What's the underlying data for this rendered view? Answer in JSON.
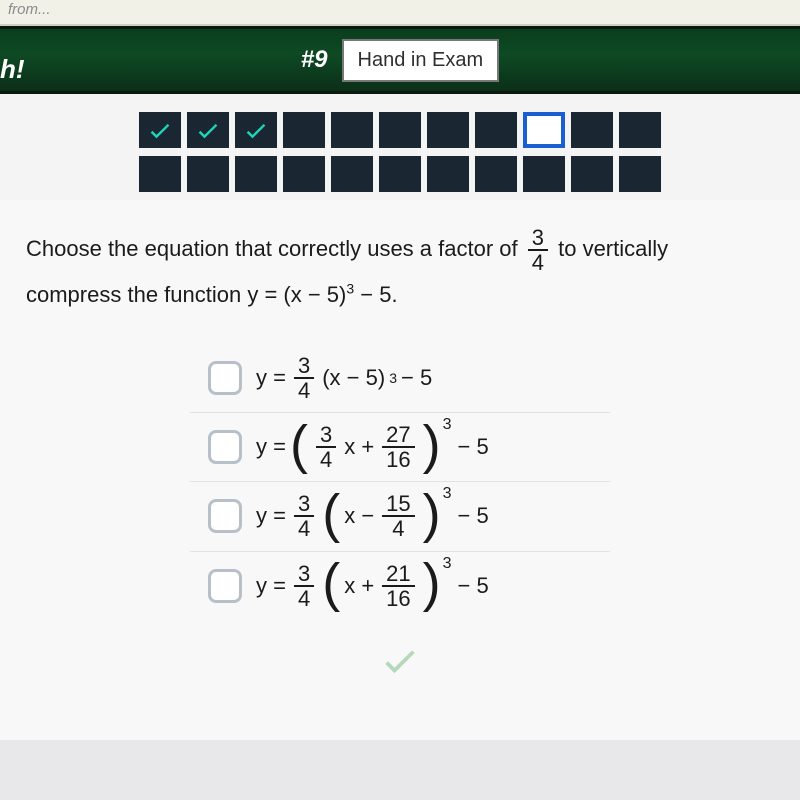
{
  "browser_hint": "from...",
  "header": {
    "badge": "h!",
    "question_num": "#9",
    "hand_in_label": "Hand in Exam"
  },
  "progress": {
    "row1": [
      {
        "state": "check"
      },
      {
        "state": "check"
      },
      {
        "state": "check"
      },
      {
        "state": "blank"
      },
      {
        "state": "blank"
      },
      {
        "state": "blank"
      },
      {
        "state": "blank"
      },
      {
        "state": "blank"
      },
      {
        "state": "current"
      },
      {
        "state": "blank"
      },
      {
        "state": "blank"
      }
    ],
    "row2": [
      {
        "state": "blank"
      },
      {
        "state": "blank"
      },
      {
        "state": "blank"
      },
      {
        "state": "blank"
      },
      {
        "state": "blank"
      },
      {
        "state": "blank"
      },
      {
        "state": "blank"
      },
      {
        "state": "blank"
      },
      {
        "state": "blank"
      },
      {
        "state": "blank"
      },
      {
        "state": "blank"
      }
    ],
    "check_color": "#1fd3b8",
    "cell_color": "#1b2633",
    "current_border": "#1a5fd0"
  },
  "question": {
    "line1_a": "Choose the equation that correctly uses a factor of ",
    "frac_num": "3",
    "frac_den": "4",
    "line1_b": " to vertically",
    "line2_a": "compress the function y = (x − 5)",
    "line2_exp": "3",
    "line2_b": " − 5."
  },
  "choices": {
    "a": {
      "pre": "y = ",
      "f1n": "3",
      "f1d": "4",
      "mid": " (x − 5)",
      "exp": "3",
      "tail": " − 5"
    },
    "b": {
      "pre": "y = ",
      "pin_f1n": "3",
      "pin_f1d": "4",
      "pin_mid": "x + ",
      "pin_f2n": "27",
      "pin_f2d": "16",
      "exp": "3",
      "tail": " − 5"
    },
    "c": {
      "pre": "y = ",
      "f1n": "3",
      "f1d": "4",
      "pin_pre": "x − ",
      "pin_f1n": "15",
      "pin_f1d": "4",
      "exp": "3",
      "tail": " − 5"
    },
    "d": {
      "pre": "y = ",
      "f1n": "3",
      "f1d": "4",
      "pin_pre": "x + ",
      "pin_f1n": "21",
      "pin_f1d": "16",
      "exp": "3",
      "tail": " − 5"
    }
  },
  "footer_check_color": "#7fbf8a"
}
